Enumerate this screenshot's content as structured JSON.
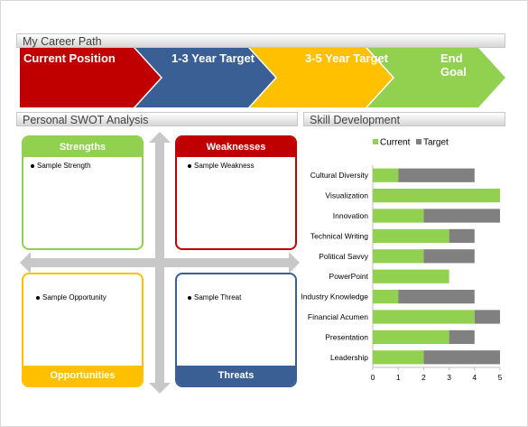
{
  "career": {
    "title": "My Career Path",
    "steps": [
      {
        "label": "Current Position",
        "color": "#c00000"
      },
      {
        "label": "1-3 Year Target",
        "color": "#3a5f94"
      },
      {
        "label": "3-5 Year Target",
        "color": "#ffc000"
      },
      {
        "label": "End Goal",
        "line1": "End",
        "line2": "Goal",
        "color": "#92d050"
      }
    ]
  },
  "swot": {
    "title": "Personal SWOT Analysis",
    "strengths": {
      "label": "Strengths",
      "item": "Sample Strength",
      "color": "#92d050"
    },
    "weaknesses": {
      "label": "Weaknesses",
      "item": "Sample Weakness",
      "color": "#c00000"
    },
    "opportunities": {
      "label": "Opportunities",
      "item": "Sample Opportunity",
      "color": "#ffc000"
    },
    "threats": {
      "label": "Threats",
      "item": "Sample Threat",
      "color": "#3a5f94"
    }
  },
  "skills": {
    "title": "Skill Development"
  },
  "chart_data": {
    "type": "bar",
    "orientation": "horizontal",
    "stacked": true,
    "categories": [
      "Cultural Diversity",
      "Visualization",
      "Innovation",
      "Technical Writing",
      "Political Savvy",
      "PowerPoint",
      "Industry Knowledge",
      "Financial Acumen",
      "Presentation",
      "Leadership"
    ],
    "series": [
      {
        "name": "Current",
        "color": "#92d050",
        "values": [
          1,
          5,
          2,
          3,
          2,
          3,
          1,
          4,
          3,
          2
        ]
      },
      {
        "name": "Target",
        "color": "#808080",
        "values": [
          3,
          0,
          3,
          1,
          2,
          0,
          3,
          1,
          1,
          3
        ]
      }
    ],
    "xlim": [
      0,
      5
    ],
    "xticks": [
      "0",
      "1",
      "2",
      "3",
      "4",
      "5"
    ],
    "legend": "top-left",
    "grid": false
  }
}
